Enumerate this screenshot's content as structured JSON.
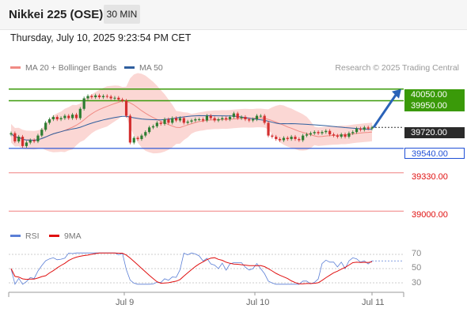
{
  "header": {
    "title": "Nikkei 225 (OSE)",
    "interval": "30 MIN",
    "datetime": "Thursday, July 10, 2025 9:23:54 PM CET"
  },
  "legend": {
    "items": [
      {
        "label": "MA 20 + Bollinger Bands",
        "color": "#f08a84"
      },
      {
        "label": "MA 50",
        "color": "#2f5f9e"
      }
    ],
    "watermark": "Research © 2025 Trading Central"
  },
  "levels": {
    "resistance_2": "40050.00",
    "resistance_1": "39950.00",
    "last_price": "39720.00",
    "pivot": "39540.00",
    "support_1": "39330.00",
    "support_2": "39000.00"
  },
  "rsi_panel": {
    "legend": [
      {
        "label": "RSI",
        "color": "#5b7fd6"
      },
      {
        "label": "9MA",
        "color": "#e01010"
      }
    ],
    "ticks": [
      "70",
      "50",
      "30"
    ]
  },
  "x_axis": {
    "labels": [
      "Jul 9",
      "Jul 10",
      "Jul 11"
    ]
  },
  "colors": {
    "resistance": "#3a9a09",
    "pivot": "#1f4fd6",
    "support": "#f08080",
    "up_candle": "#2e7d32",
    "down_candle": "#d32f2f"
  },
  "chart_data": {
    "type": "candlestick",
    "title": "Nikkei 225 (OSE)",
    "interval": "30 MIN",
    "x_labels": [
      "Jul 9",
      "Jul 10",
      "Jul 11"
    ],
    "ylim": [
      38900,
      40150
    ],
    "closes": [
      39670,
      39600,
      39640,
      39560,
      39590,
      39610,
      39600,
      39650,
      39700,
      39760,
      39790,
      39810,
      39790,
      39800,
      39820,
      39800,
      39830,
      39800,
      39880,
      39970,
      39990,
      39980,
      39995,
      39980,
      39990,
      39985,
      39970,
      39975,
      39960,
      39950,
      39820,
      39590,
      39630,
      39620,
      39650,
      39680,
      39720,
      39730,
      39760,
      39750,
      39790,
      39760,
      39800,
      39780,
      39800,
      39760,
      39770,
      39780,
      39790,
      39790,
      39780,
      39820,
      39800,
      39780,
      39790,
      39800,
      39790,
      39810,
      39840,
      39800,
      39810,
      39790,
      39780,
      39790,
      39820,
      39820,
      39760,
      39650,
      39640,
      39620,
      39610,
      39630,
      39620,
      39640,
      39620,
      39610,
      39650,
      39660,
      39670,
      39680,
      39670,
      39680,
      39690,
      39660,
      39650,
      39640,
      39660,
      39640,
      39670,
      39680,
      39710,
      39700,
      39720,
      39710,
      39720
    ],
    "ma50": "values follow price smoothly around 39660-39790",
    "levels": [
      40050,
      39950,
      39720,
      39540,
      39330,
      39000
    ],
    "rsi": {
      "ticks": [
        70,
        50,
        30
      ],
      "series": [
        "RSI",
        "9MA"
      ]
    }
  }
}
